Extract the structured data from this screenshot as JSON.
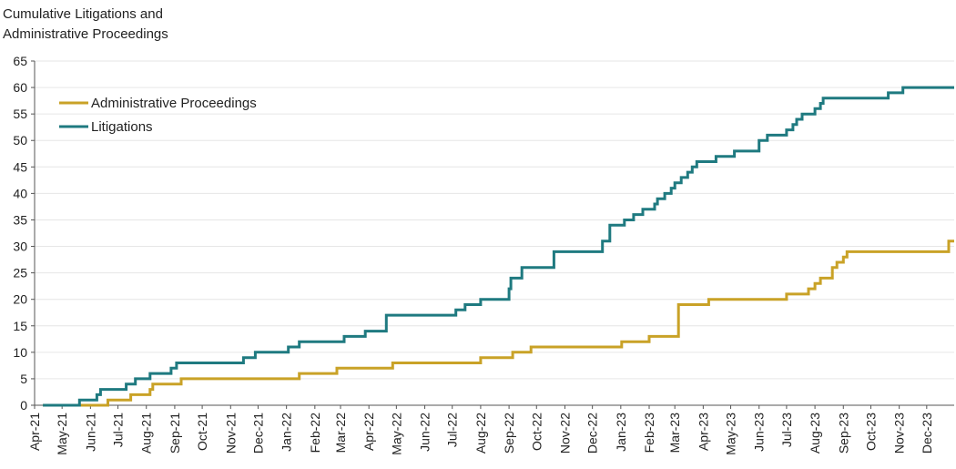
{
  "chart_data": {
    "type": "line",
    "title_lines": [
      "Cumulative Litigations and",
      "Administrative Proceedings"
    ],
    "xlabel": "",
    "ylabel": "",
    "ylim": [
      0,
      65
    ],
    "yticks": [
      0,
      5,
      10,
      15,
      20,
      25,
      30,
      35,
      40,
      45,
      50,
      55,
      60,
      65
    ],
    "xlim": [
      "2021-04-01",
      "2023-12-31"
    ],
    "xticks": [
      "Apr-21",
      "May-21",
      "Jun-21",
      "Jul-21",
      "Aug-21",
      "Sep-21",
      "Oct-21",
      "Nov-21",
      "Dec-21",
      "Jan-22",
      "Feb-22",
      "Mar-22",
      "Apr-22",
      "May-22",
      "Jun-22",
      "Jul-22",
      "Aug-22",
      "Sep-22",
      "Oct-22",
      "Nov-22",
      "Dec-22",
      "Jan-23",
      "Feb-23",
      "Mar-23",
      "Apr-23",
      "May-23",
      "Jun-23",
      "Jul-23",
      "Aug-23",
      "Sep-23",
      "Oct-23",
      "Nov-23",
      "Dec-23"
    ],
    "grid": true,
    "legend_position": "top-left",
    "step": true,
    "series": [
      {
        "name": "Administrative Proceedings",
        "color": "#c9a227",
        "points": [
          [
            "2021-04-10",
            0
          ],
          [
            "2021-06-20",
            1
          ],
          [
            "2021-07-15",
            2
          ],
          [
            "2021-08-05",
            3
          ],
          [
            "2021-08-08",
            4
          ],
          [
            "2021-09-08",
            5
          ],
          [
            "2022-01-15",
            6
          ],
          [
            "2022-02-25",
            7
          ],
          [
            "2022-04-27",
            8
          ],
          [
            "2022-08-01",
            9
          ],
          [
            "2022-09-05",
            10
          ],
          [
            "2022-09-25",
            11
          ],
          [
            "2023-01-02",
            12
          ],
          [
            "2023-02-01",
            13
          ],
          [
            "2023-03-05",
            19
          ],
          [
            "2023-04-07",
            20
          ],
          [
            "2023-07-01",
            21
          ],
          [
            "2023-07-25",
            22
          ],
          [
            "2023-08-01",
            23
          ],
          [
            "2023-08-07",
            24
          ],
          [
            "2023-08-20",
            26
          ],
          [
            "2023-08-25",
            27
          ],
          [
            "2023-09-01",
            28
          ],
          [
            "2023-09-05",
            29
          ],
          [
            "2023-12-25",
            31
          ],
          [
            "2023-12-31",
            31
          ]
        ]
      },
      {
        "name": "Litigations",
        "color": "#1f7a80",
        "points": [
          [
            "2021-04-10",
            0
          ],
          [
            "2021-05-20",
            1
          ],
          [
            "2021-06-08",
            2
          ],
          [
            "2021-06-12",
            3
          ],
          [
            "2021-07-10",
            4
          ],
          [
            "2021-07-20",
            5
          ],
          [
            "2021-08-05",
            6
          ],
          [
            "2021-08-28",
            7
          ],
          [
            "2021-09-03",
            8
          ],
          [
            "2021-11-15",
            9
          ],
          [
            "2021-11-28",
            10
          ],
          [
            "2022-01-03",
            11
          ],
          [
            "2022-01-15",
            12
          ],
          [
            "2022-03-05",
            13
          ],
          [
            "2022-03-28",
            14
          ],
          [
            "2022-04-20",
            17
          ],
          [
            "2022-07-05",
            18
          ],
          [
            "2022-07-15",
            19
          ],
          [
            "2022-08-01",
            20
          ],
          [
            "2022-09-01",
            22
          ],
          [
            "2022-09-03",
            24
          ],
          [
            "2022-09-15",
            26
          ],
          [
            "2022-10-20",
            29
          ],
          [
            "2022-12-12",
            31
          ],
          [
            "2022-12-20",
            34
          ],
          [
            "2023-01-05",
            35
          ],
          [
            "2023-01-15",
            36
          ],
          [
            "2023-01-25",
            37
          ],
          [
            "2023-02-07",
            38
          ],
          [
            "2023-02-10",
            39
          ],
          [
            "2023-02-18",
            40
          ],
          [
            "2023-02-25",
            41
          ],
          [
            "2023-03-01",
            42
          ],
          [
            "2023-03-08",
            43
          ],
          [
            "2023-03-15",
            44
          ],
          [
            "2023-03-20",
            45
          ],
          [
            "2023-03-25",
            46
          ],
          [
            "2023-04-15",
            47
          ],
          [
            "2023-05-05",
            48
          ],
          [
            "2023-06-01",
            50
          ],
          [
            "2023-06-10",
            51
          ],
          [
            "2023-07-01",
            52
          ],
          [
            "2023-07-08",
            53
          ],
          [
            "2023-07-12",
            54
          ],
          [
            "2023-07-18",
            55
          ],
          [
            "2023-08-01",
            56
          ],
          [
            "2023-08-07",
            57
          ],
          [
            "2023-08-10",
            58
          ],
          [
            "2023-10-20",
            59
          ],
          [
            "2023-11-05",
            60
          ],
          [
            "2023-12-31",
            60
          ]
        ]
      }
    ]
  }
}
